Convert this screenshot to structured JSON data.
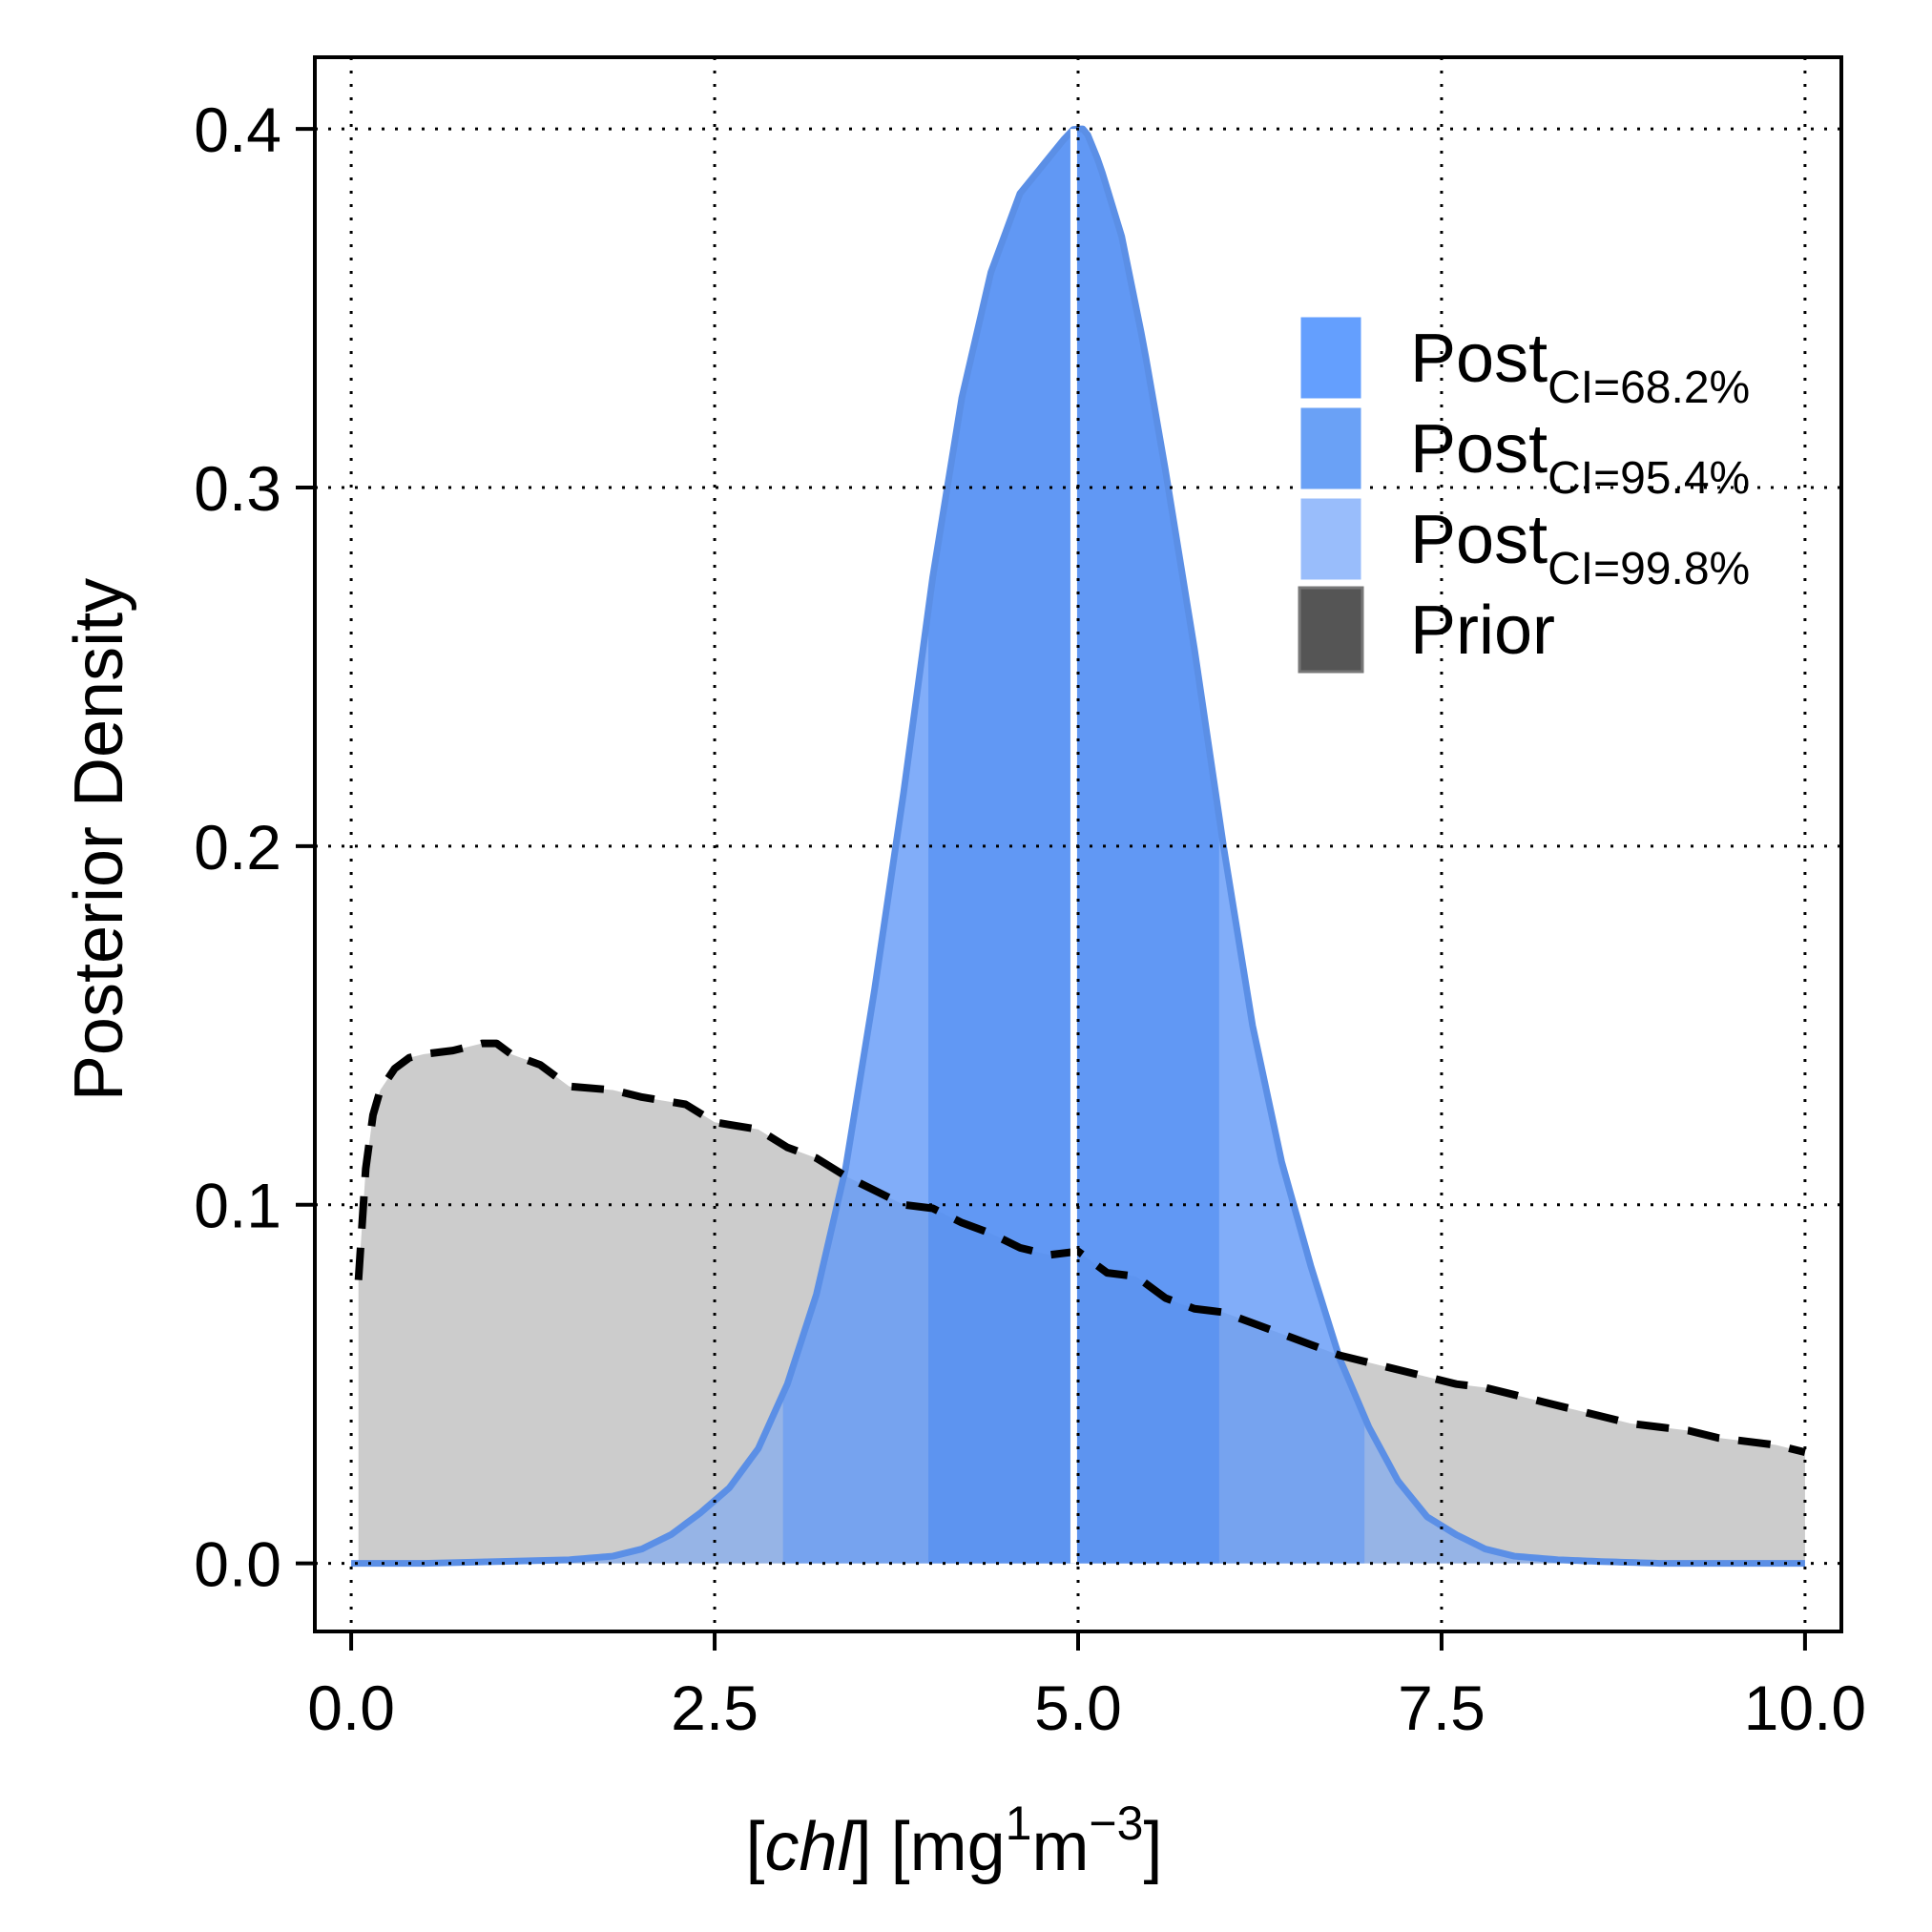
{
  "chart_data": {
    "type": "area",
    "ylabel": "Posterior Density",
    "xlabel": {
      "bracket_open": "[",
      "var": "chl",
      "bracket_mid": "] [mg",
      "sup1": "1",
      "m": "m",
      "sup2": "−3",
      "bracket_close": "]"
    },
    "xlim": [
      -0.25,
      10.25
    ],
    "ylim": [
      -0.019,
      0.42
    ],
    "x_ticks": [
      "0.0",
      "2.5",
      "5.0",
      "7.5",
      "10.0"
    ],
    "x_tick_values": [
      0,
      2.5,
      5,
      7.5,
      10
    ],
    "y_ticks": [
      "0.0",
      "0.1",
      "0.2",
      "0.3",
      "0.4"
    ],
    "y_tick_values": [
      0,
      0.1,
      0.2,
      0.3,
      0.4
    ],
    "grid": "dotted",
    "legend_position": "top-right",
    "legend": [
      {
        "base": "Post",
        "sub": "CI=68.2%",
        "color": "#649ffe"
      },
      {
        "base": "Post",
        "sub": "CI=95.4%",
        "color": "#6aa1f6"
      },
      {
        "base": "Post",
        "sub": "CI=99.8%",
        "color": "#99bdfb"
      },
      {
        "base": "Prior",
        "sub": "",
        "color": "#555555"
      }
    ],
    "median": 4.97,
    "ci_bands": {
      "ci_68_2": [
        3.97,
        5.97
      ],
      "ci_95_4": [
        2.97,
        6.97
      ],
      "ci_99_8": [
        0.0,
        10.0
      ]
    },
    "prior": {
      "name": "Prior",
      "x": [
        0.05,
        0.1,
        0.15,
        0.2,
        0.3,
        0.4,
        0.5,
        0.7,
        0.9,
        1.0,
        1.1,
        1.3,
        1.5,
        1.8,
        2.0,
        2.3,
        2.5,
        2.8,
        3.0,
        3.2,
        3.4,
        3.6,
        3.8,
        4.0,
        4.2,
        4.4,
        4.6,
        4.8,
        5.0,
        5.2,
        5.4,
        5.6,
        5.8,
        6.0,
        6.2,
        6.4,
        6.6,
        6.8,
        7.0,
        7.2,
        7.4,
        7.6,
        7.8,
        8.0,
        8.2,
        8.4,
        8.6,
        8.8,
        9.0,
        9.2,
        9.4,
        9.6,
        9.8,
        10.0
      ],
      "y": [
        0.079,
        0.11,
        0.125,
        0.132,
        0.138,
        0.141,
        0.142,
        0.143,
        0.145,
        0.145,
        0.142,
        0.139,
        0.133,
        0.132,
        0.13,
        0.128,
        0.123,
        0.121,
        0.116,
        0.113,
        0.108,
        0.104,
        0.1,
        0.099,
        0.095,
        0.092,
        0.088,
        0.086,
        0.087,
        0.081,
        0.08,
        0.074,
        0.071,
        0.07,
        0.067,
        0.064,
        0.061,
        0.058,
        0.056,
        0.054,
        0.052,
        0.05,
        0.049,
        0.047,
        0.045,
        0.043,
        0.041,
        0.039,
        0.038,
        0.037,
        0.035,
        0.034,
        0.033,
        0.031
      ]
    },
    "posterior": {
      "name": "Post",
      "x": [
        0.0,
        0.5,
        1.0,
        1.5,
        1.8,
        2.0,
        2.2,
        2.4,
        2.6,
        2.8,
        3.0,
        3.2,
        3.4,
        3.6,
        3.8,
        4.0,
        4.2,
        4.4,
        4.6,
        4.8,
        4.9,
        4.97,
        5.05,
        5.15,
        5.3,
        5.45,
        5.6,
        5.8,
        6.0,
        6.2,
        6.4,
        6.6,
        6.8,
        7.0,
        7.2,
        7.4,
        7.6,
        7.8,
        8.0,
        8.3,
        8.6,
        9.0,
        9.5,
        10.0
      ],
      "y": [
        0.0,
        0.0,
        0.0005,
        0.001,
        0.002,
        0.004,
        0.008,
        0.014,
        0.021,
        0.032,
        0.05,
        0.075,
        0.11,
        0.16,
        0.215,
        0.275,
        0.325,
        0.36,
        0.382,
        0.392,
        0.397,
        0.4,
        0.4,
        0.39,
        0.37,
        0.34,
        0.305,
        0.255,
        0.2,
        0.15,
        0.112,
        0.083,
        0.057,
        0.038,
        0.023,
        0.013,
        0.008,
        0.004,
        0.002,
        0.001,
        0.0005,
        0.0,
        0.0,
        0.0
      ]
    }
  }
}
